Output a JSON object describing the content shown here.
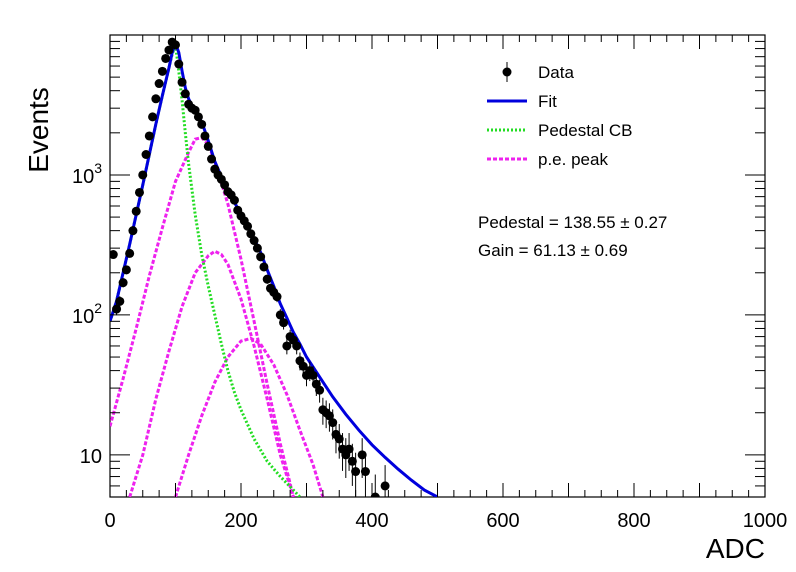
{
  "chart_data": {
    "type": "scatter",
    "xlabel": "ADC",
    "ylabel": "Events",
    "x_range": [
      0,
      1000
    ],
    "y_range": [
      5,
      10000
    ],
    "y_scale": "log",
    "grid": false,
    "legend_placement": "top-right",
    "x_ticks": [
      {
        "value": 0,
        "label": "0"
      },
      {
        "value": 200,
        "label": "200"
      },
      {
        "value": 400,
        "label": "400"
      },
      {
        "value": 600,
        "label": "600"
      },
      {
        "value": 800,
        "label": "800"
      },
      {
        "value": 1000,
        "label": "1000"
      }
    ],
    "y_ticks": [
      {
        "value": 10,
        "base": "10",
        "exp": ""
      },
      {
        "value": 100,
        "base": "10",
        "exp": "2"
      },
      {
        "value": 1000,
        "base": "10",
        "exp": "3"
      }
    ],
    "legend": [
      {
        "label": "Data",
        "kind": "marker",
        "color": "#000000"
      },
      {
        "label": "Fit",
        "kind": "line",
        "color": "#0000dd"
      },
      {
        "label": "Pedestal CB",
        "kind": "dotted",
        "color": "#22dd22"
      },
      {
        "label": "p.e. peak",
        "kind": "dashed",
        "color": "#ee22ee"
      }
    ],
    "annotations": [
      "Pedestal = 138.55 ± 0.27",
      "Gain = 61.13 ± 0.69"
    ],
    "data": {
      "name": "Data",
      "color": "#000000",
      "points": [
        [
          5,
          270
        ],
        [
          10,
          110
        ],
        [
          15,
          125
        ],
        [
          20,
          170
        ],
        [
          25,
          210
        ],
        [
          30,
          275
        ],
        [
          35,
          400
        ],
        [
          40,
          550
        ],
        [
          45,
          750
        ],
        [
          50,
          1000
        ],
        [
          55,
          1400
        ],
        [
          60,
          1900
        ],
        [
          65,
          2600
        ],
        [
          70,
          3500
        ],
        [
          75,
          4500
        ],
        [
          80,
          5500
        ],
        [
          85,
          6800
        ],
        [
          90,
          7800
        ],
        [
          95,
          8900
        ],
        [
          100,
          8500
        ],
        [
          105,
          6200
        ],
        [
          110,
          4600
        ],
        [
          115,
          3800
        ],
        [
          120,
          3200
        ],
        [
          125,
          3000
        ],
        [
          130,
          2900
        ],
        [
          135,
          2600
        ],
        [
          140,
          2300
        ],
        [
          145,
          1900
        ],
        [
          150,
          1600
        ],
        [
          155,
          1300
        ],
        [
          160,
          1100
        ],
        [
          165,
          1000
        ],
        [
          170,
          930
        ],
        [
          175,
          850
        ],
        [
          180,
          760
        ],
        [
          185,
          720
        ],
        [
          190,
          660
        ],
        [
          195,
          560
        ],
        [
          200,
          510
        ],
        [
          205,
          470
        ],
        [
          210,
          430
        ],
        [
          215,
          380
        ],
        [
          220,
          340
        ],
        [
          225,
          300
        ],
        [
          230,
          260
        ],
        [
          235,
          220
        ],
        [
          240,
          180
        ],
        [
          245,
          155
        ],
        [
          250,
          145
        ],
        [
          255,
          135
        ],
        [
          260,
          100
        ],
        [
          265,
          88
        ],
        [
          270,
          60
        ],
        [
          275,
          70
        ],
        [
          280,
          66
        ],
        [
          285,
          60
        ],
        [
          290,
          47
        ],
        [
          295,
          43
        ],
        [
          300,
          37
        ],
        [
          305,
          40
        ],
        [
          310,
          37
        ],
        [
          315,
          32
        ],
        [
          320,
          29
        ],
        [
          325,
          21
        ],
        [
          330,
          20
        ],
        [
          335,
          19
        ],
        [
          340,
          17
        ],
        [
          345,
          14
        ],
        [
          350,
          13
        ],
        [
          355,
          11
        ],
        [
          360,
          10
        ],
        [
          365,
          11
        ],
        [
          370,
          9
        ],
        [
          375,
          7.6
        ],
        [
          385,
          10
        ],
        [
          390,
          7.6
        ],
        [
          405,
          5
        ],
        [
          420,
          6
        ]
      ]
    },
    "fit": {
      "name": "Fit",
      "color": "#0000dd",
      "points": [
        [
          0,
          90
        ],
        [
          10,
          125
        ],
        [
          20,
          200
        ],
        [
          30,
          320
        ],
        [
          40,
          520
        ],
        [
          50,
          850
        ],
        [
          60,
          1400
        ],
        [
          70,
          2300
        ],
        [
          80,
          3700
        ],
        [
          90,
          5800
        ],
        [
          95,
          7500
        ],
        [
          100,
          8700
        ],
        [
          105,
          7500
        ],
        [
          110,
          5500
        ],
        [
          115,
          4200
        ],
        [
          120,
          3500
        ],
        [
          130,
          2800
        ],
        [
          140,
          2400
        ],
        [
          150,
          1750
        ],
        [
          160,
          1250
        ],
        [
          170,
          970
        ],
        [
          180,
          780
        ],
        [
          190,
          640
        ],
        [
          200,
          520
        ],
        [
          210,
          430
        ],
        [
          220,
          350
        ],
        [
          230,
          280
        ],
        [
          240,
          210
        ],
        [
          250,
          160
        ],
        [
          260,
          120
        ],
        [
          270,
          95
        ],
        [
          280,
          75
        ],
        [
          290,
          62
        ],
        [
          300,
          50
        ],
        [
          320,
          36
        ],
        [
          340,
          26
        ],
        [
          360,
          19.5
        ],
        [
          380,
          15
        ],
        [
          400,
          11.8
        ],
        [
          420,
          9.6
        ],
        [
          440,
          7.9
        ],
        [
          460,
          6.6
        ],
        [
          480,
          5.6
        ],
        [
          500,
          5
        ]
      ]
    },
    "pedestal_cb": {
      "name": "Pedestal CB",
      "color": "#22dd22",
      "points": [
        [
          0,
          90
        ],
        [
          10,
          125
        ],
        [
          20,
          200
        ],
        [
          30,
          320
        ],
        [
          40,
          520
        ],
        [
          50,
          850
        ],
        [
          60,
          1400
        ],
        [
          70,
          2300
        ],
        [
          80,
          3700
        ],
        [
          90,
          5800
        ],
        [
          95,
          7300
        ],
        [
          100,
          8500
        ],
        [
          105,
          5500
        ],
        [
          110,
          3400
        ],
        [
          115,
          2000
        ],
        [
          120,
          1200
        ],
        [
          130,
          520
        ],
        [
          140,
          270
        ],
        [
          150,
          160
        ],
        [
          160,
          100
        ],
        [
          170,
          62
        ],
        [
          180,
          40
        ],
        [
          190,
          28
        ],
        [
          200,
          21
        ],
        [
          220,
          13
        ],
        [
          240,
          9
        ],
        [
          260,
          7
        ],
        [
          280,
          5.6
        ],
        [
          290,
          5
        ]
      ]
    },
    "pe_peaks": [
      {
        "name": "p.e. peak",
        "color": "#ee22ee",
        "points": [
          [
            0,
            16
          ],
          [
            20,
            35
          ],
          [
            40,
            80
          ],
          [
            60,
            190
          ],
          [
            80,
            420
          ],
          [
            100,
            900
          ],
          [
            120,
            1450
          ],
          [
            130,
            1800
          ],
          [
            140,
            1850
          ],
          [
            150,
            1650
          ],
          [
            160,
            1250
          ],
          [
            180,
            620
          ],
          [
            200,
            250
          ],
          [
            220,
            90
          ],
          [
            240,
            32
          ],
          [
            260,
            12
          ],
          [
            280,
            5
          ]
        ]
      },
      {
        "name": "p.e. peak",
        "color": "#ee22ee",
        "points": [
          [
            30,
            5
          ],
          [
            50,
            10
          ],
          [
            70,
            25
          ],
          [
            90,
            55
          ],
          [
            110,
            115
          ],
          [
            130,
            200
          ],
          [
            150,
            265
          ],
          [
            160,
            285
          ],
          [
            170,
            270
          ],
          [
            180,
            230
          ],
          [
            200,
            130
          ],
          [
            220,
            60
          ],
          [
            240,
            25
          ],
          [
            260,
            10
          ],
          [
            280,
            5
          ]
        ]
      },
      {
        "name": "p.e. peak",
        "color": "#ee22ee",
        "points": [
          [
            100,
            5
          ],
          [
            120,
            10
          ],
          [
            140,
            19
          ],
          [
            160,
            33
          ],
          [
            180,
            50
          ],
          [
            200,
            65
          ],
          [
            215,
            68
          ],
          [
            230,
            62
          ],
          [
            250,
            44
          ],
          [
            270,
            27
          ],
          [
            290,
            15
          ],
          [
            310,
            8.5
          ],
          [
            325,
            5
          ]
        ]
      }
    ]
  }
}
